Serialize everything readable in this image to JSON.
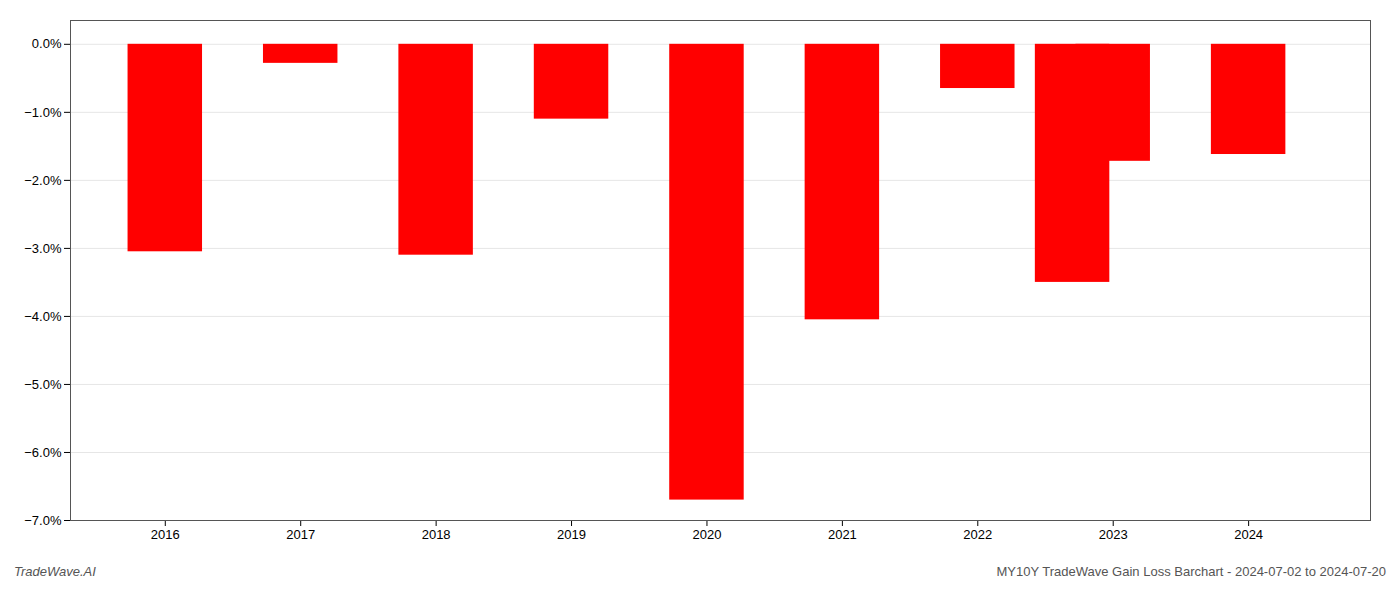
{
  "chart_data": {
    "type": "bar",
    "x": [
      2016,
      2017,
      2018,
      2019,
      2020,
      2021,
      2022,
      2022.7,
      2023,
      2024
    ],
    "values": [
      -3.05,
      -0.28,
      -3.1,
      -1.1,
      -6.7,
      -4.05,
      -0.65,
      -3.5,
      -1.72,
      -1.62
    ],
    "color": "#ff0000",
    "xlim": [
      2015.3,
      2024.9
    ],
    "xticks": [
      2016,
      2017,
      2018,
      2019,
      2020,
      2021,
      2022,
      2023,
      2024
    ],
    "ylim": [
      -7.0,
      0.35
    ],
    "yticks": [
      {
        "value": 0.0,
        "label": "0.0%"
      },
      {
        "value": -1.0,
        "label": "−1.0%"
      },
      {
        "value": -2.0,
        "label": "−2.0%"
      },
      {
        "value": -3.0,
        "label": "−3.0%"
      },
      {
        "value": -4.0,
        "label": "−4.0%"
      },
      {
        "value": -5.0,
        "label": "−5.0%"
      },
      {
        "value": -6.0,
        "label": "−6.0%"
      },
      {
        "value": -7.0,
        "label": "−7.0%"
      }
    ],
    "grid": true,
    "annotations": [
      "TradeWave.AI",
      "MY10Y TradeWave Gain Loss Barchart - 2024-07-02 to 2024-07-20"
    ]
  }
}
